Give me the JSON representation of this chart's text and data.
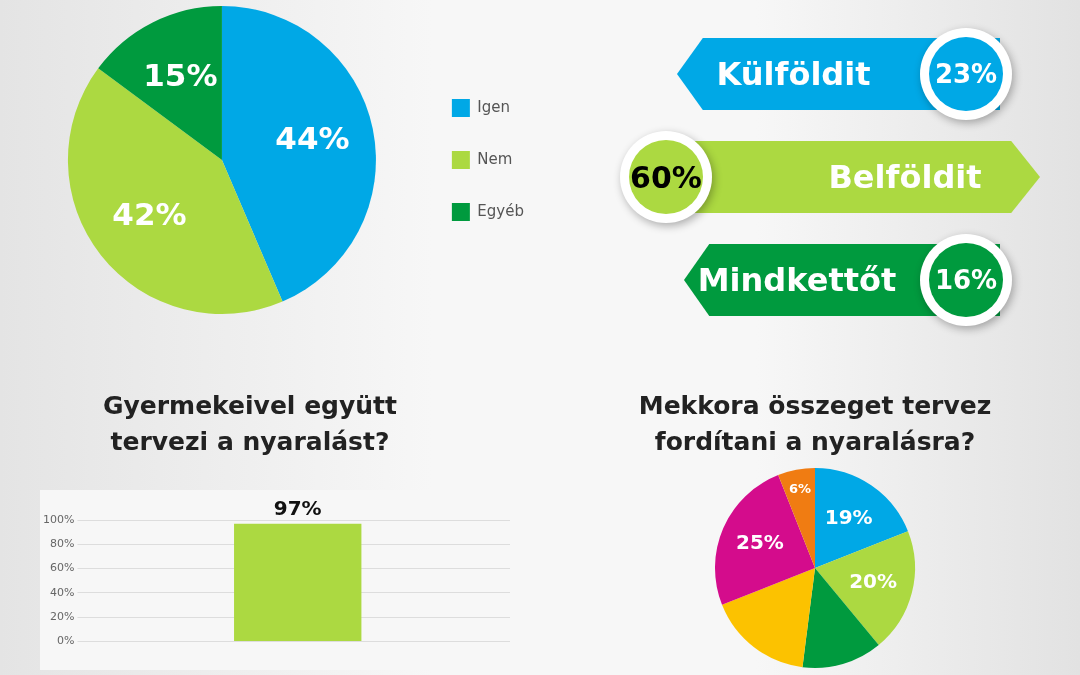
{
  "chart_data": [
    {
      "type": "pie",
      "categories": [
        "Igen",
        "Nem",
        "Egyéb"
      ],
      "values": [
        44,
        42,
        15
      ],
      "colors": [
        "#00a8e6",
        "#acd941",
        "#009a3e"
      ],
      "value_labels": [
        "44%",
        "42%",
        "15%"
      ],
      "legend": "right"
    },
    {
      "type": "other",
      "categories": [
        "Külföldit",
        "Belföldit",
        "Mindkettőt"
      ],
      "values": [
        23,
        60,
        16
      ],
      "colors": [
        "#00a8e6",
        "#acd941",
        "#009a3e"
      ],
      "value_labels": [
        "23%",
        "60%",
        "16%"
      ]
    },
    {
      "type": "bar",
      "title": "Gyermekeivel együtt tervezi a nyaralást?",
      "categories": [
        null
      ],
      "values": [
        97
      ],
      "color": "#acd941",
      "value_labels": [
        "97%"
      ],
      "ylim": [
        0,
        100
      ],
      "yticks": [
        {
          "value": 0,
          "label": "0%"
        },
        {
          "value": 20,
          "label": "20%"
        },
        {
          "value": 40,
          "label": "40%"
        },
        {
          "value": 60,
          "label": "60%"
        },
        {
          "value": 80,
          "label": "80%"
        },
        {
          "value": 100,
          "label": "100%"
        }
      ],
      "grid": "y"
    },
    {
      "type": "pie",
      "title": "Mekkora összeget tervez fordítani a nyaralásra?",
      "categories": [
        null,
        null,
        null,
        null,
        null,
        null
      ],
      "values": [
        19,
        20,
        13,
        17,
        25,
        6
      ],
      "colors": [
        "#00a8e6",
        "#acd941",
        "#009a3e",
        "#fcc200",
        "#d40c8c",
        "#f07c12"
      ],
      "value_labels": [
        "19%",
        "20%",
        null,
        null,
        "25%",
        "6%"
      ]
    }
  ]
}
